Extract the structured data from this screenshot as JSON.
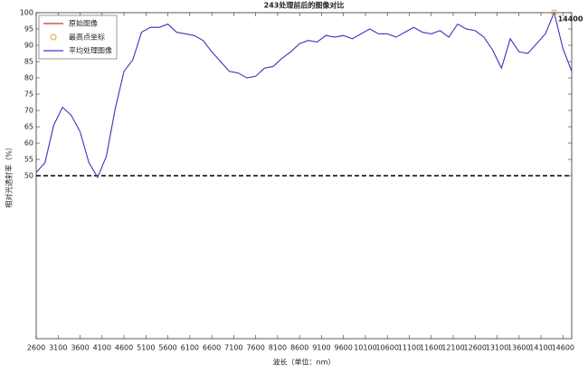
{
  "chart_data": {
    "type": "line",
    "title": "243处理前后的图像对比",
    "xlabel": "波长（单位：nm）",
    "ylabel": "相对光透射率（%）",
    "x": [
      2600,
      2800,
      3000,
      3200,
      3400,
      3600,
      3800,
      4000,
      4200,
      4400,
      4600,
      4800,
      5000,
      5200,
      5400,
      5600,
      5800,
      6000,
      6200,
      6400,
      6600,
      6800,
      7000,
      7200,
      7400,
      7600,
      7800,
      8000,
      8200,
      8400,
      8600,
      8800,
      9000,
      9200,
      9400,
      9600,
      9800,
      10000,
      10200,
      10400,
      10600,
      10800,
      11000,
      11200,
      11400,
      11600,
      11800,
      12000,
      12200,
      12400,
      12600,
      12800,
      13000,
      13200,
      13400,
      13600,
      13800,
      14000,
      14200,
      14400,
      14600,
      14800
    ],
    "series": [
      {
        "name": "原始图像",
        "color": "#c0392b",
        "values": [
          51,
          54,
          65.5,
          71,
          68.5,
          63.5,
          54,
          49.5,
          56,
          70.5,
          82,
          85.5,
          94,
          95.5,
          95.5,
          96.5,
          94,
          93.5,
          93,
          91.5,
          88,
          85,
          82,
          81.5,
          80,
          80.5,
          83,
          83.5,
          86,
          88,
          90.5,
          91.5,
          91,
          93,
          92.5,
          93,
          92,
          93.5,
          95,
          93.5,
          93.5,
          92.5,
          94,
          95.5,
          94,
          93.5,
          94.5,
          92.5,
          96.5,
          95,
          94.5,
          92.5,
          88.5,
          83,
          92,
          88,
          87.5,
          90.5,
          93.5,
          100,
          89,
          82
        ]
      },
      {
        "name": "平均处理图像",
        "color": "#3a3ad6",
        "values": [
          51,
          54,
          65.5,
          71,
          68.5,
          63.5,
          54,
          49.5,
          56,
          70.5,
          82,
          85.5,
          94,
          95.5,
          95.5,
          96.5,
          94,
          93.5,
          93,
          91.5,
          88,
          85,
          82,
          81.5,
          80,
          80.5,
          83,
          83.5,
          86,
          88,
          90.5,
          91.5,
          91,
          93,
          92.5,
          93,
          92,
          93.5,
          95,
          93.5,
          93.5,
          92.5,
          94,
          95.5,
          94,
          93.5,
          94.5,
          92.5,
          96.5,
          95,
          94.5,
          92.5,
          88.5,
          83,
          92,
          88,
          87.5,
          90.5,
          93.5,
          100,
          89,
          82
        ]
      }
    ],
    "peak": {
      "name": "最高点坐标",
      "color": "#d9a441",
      "x": 14400,
      "value": 100,
      "label": "14400"
    },
    "threshold": 50,
    "xlim": [
      2600,
      14800
    ],
    "xticks": [
      2600,
      3100,
      3600,
      4100,
      4600,
      5100,
      5600,
      6100,
      6600,
      7100,
      7600,
      8100,
      8600,
      9100,
      9600,
      10100,
      10600,
      11100,
      11600,
      12100,
      12600,
      13100,
      13600,
      14100,
      14600
    ],
    "ylim": [
      0,
      100
    ],
    "yticks": [
      50,
      55,
      60,
      65,
      70,
      75,
      80,
      85,
      90,
      95,
      100
    ]
  }
}
